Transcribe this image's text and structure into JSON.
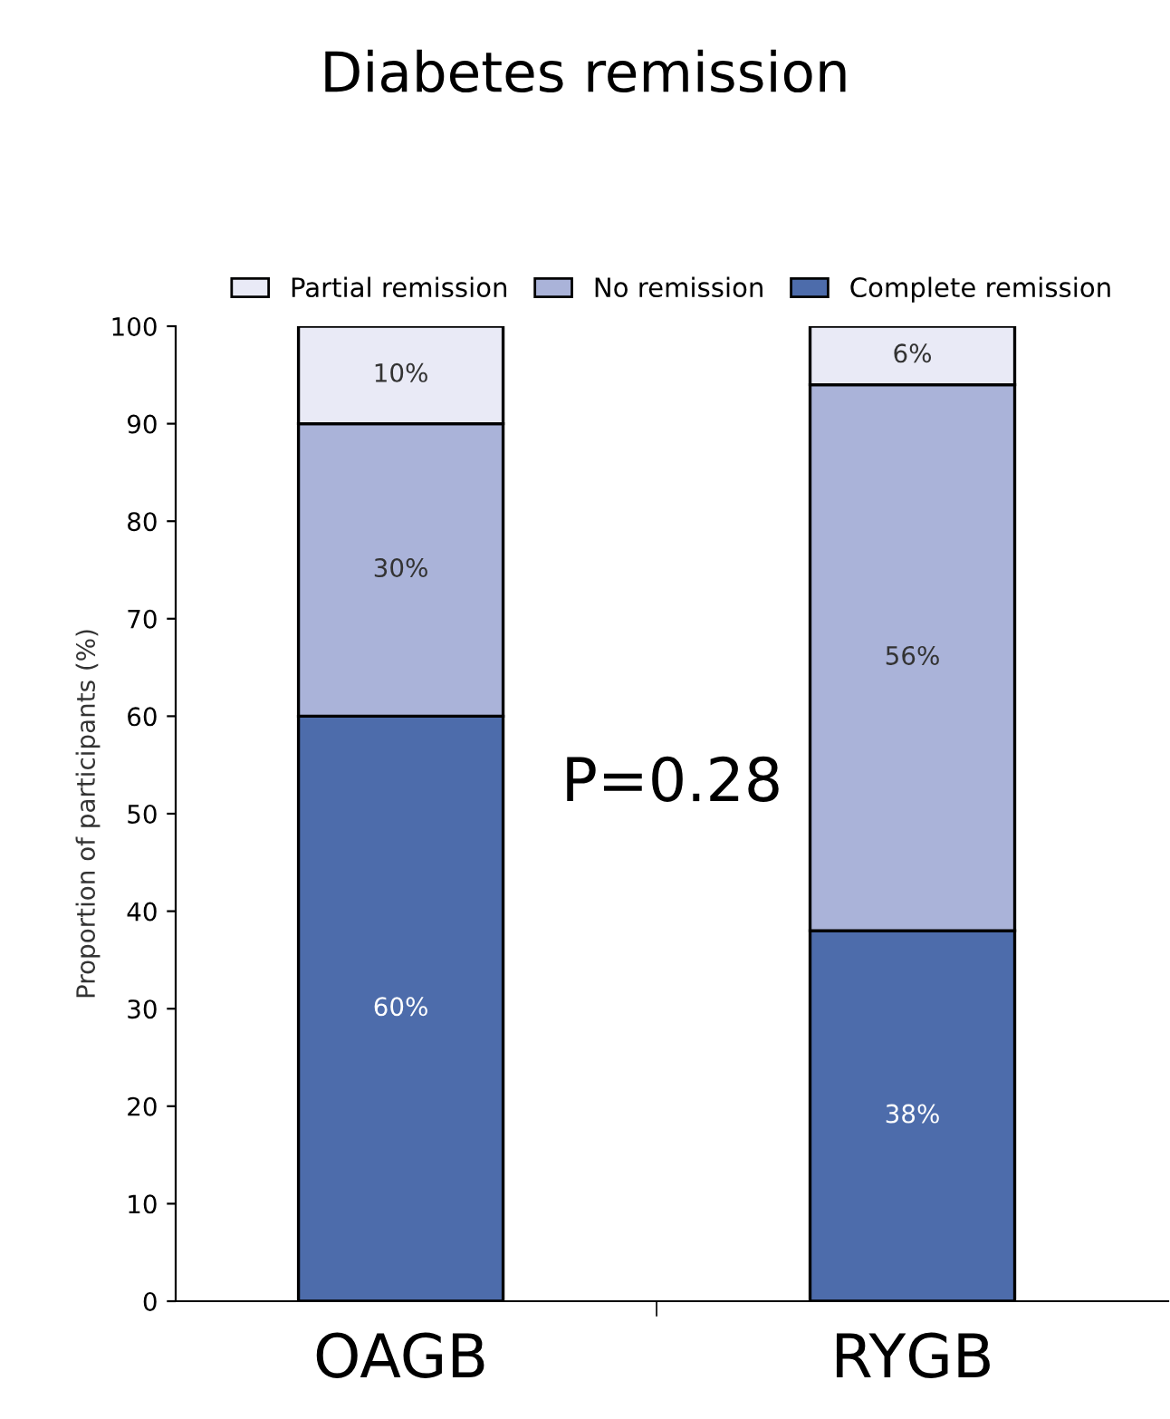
{
  "chart_data": {
    "type": "bar",
    "title": "Diabetes remission",
    "ylabel": "Proportion of participants (%)",
    "categories": [
      "OAGB",
      "RYGB"
    ],
    "stacked": true,
    "series": [
      {
        "name": "Complete remission",
        "color": "#4d6cab",
        "values": [
          60,
          38
        ],
        "value_labels": [
          "60%",
          "38%"
        ]
      },
      {
        "name": "No remission",
        "color": "#aab3d9",
        "values": [
          30,
          56
        ],
        "value_labels": [
          "30%",
          "56%"
        ]
      },
      {
        "name": "Partial remission",
        "color": "#e9eaf6",
        "values": [
          10,
          6
        ],
        "value_labels": [
          "10%",
          "6%"
        ]
      }
    ],
    "ylim": [
      0,
      100
    ],
    "yticks": [
      0,
      10,
      20,
      30,
      40,
      50,
      60,
      70,
      80,
      90,
      100
    ],
    "legend": "top",
    "grid": false,
    "annotations": [
      "P=0.28"
    ]
  }
}
